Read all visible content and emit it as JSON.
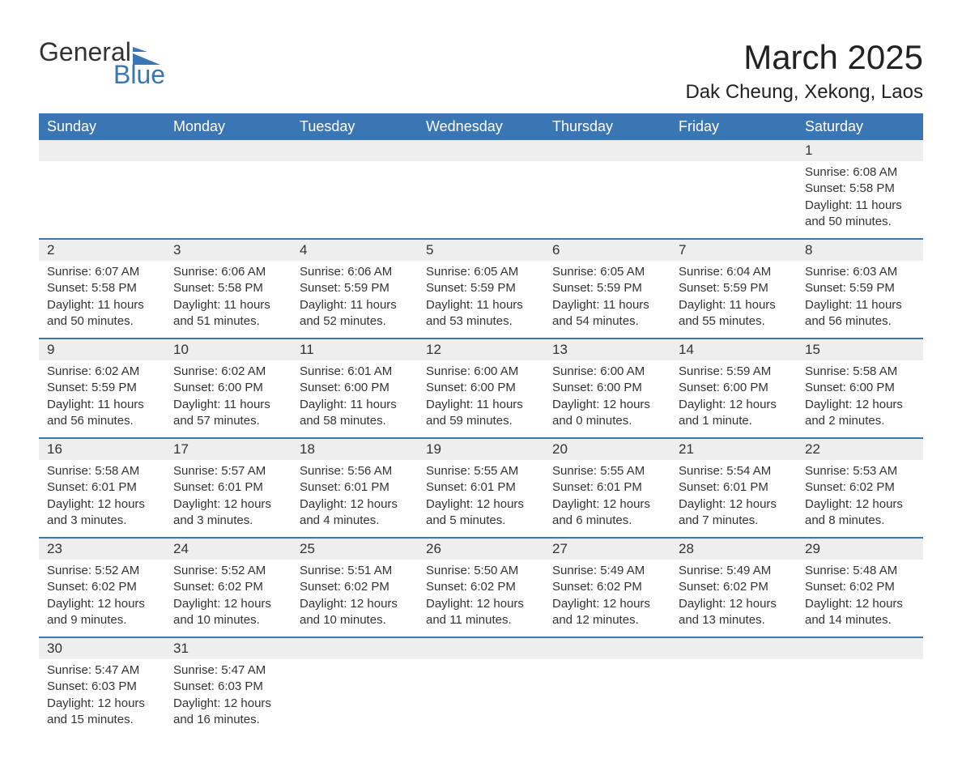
{
  "logo": {
    "word1": "General",
    "word2": "Blue"
  },
  "title": "March 2025",
  "location": "Dak Cheung, Xekong, Laos",
  "colors": {
    "header_bg": "#3a76b4",
    "header_fg": "#ffffff",
    "row_sep": "#3a76b4",
    "daynum_bg": "#eeeeee",
    "text": "#333333",
    "logo_blue": "#3a76b4",
    "page_bg": "#ffffff"
  },
  "weekdays": [
    "Sunday",
    "Monday",
    "Tuesday",
    "Wednesday",
    "Thursday",
    "Friday",
    "Saturday"
  ],
  "weeks": [
    [
      {
        "day": null
      },
      {
        "day": null
      },
      {
        "day": null
      },
      {
        "day": null
      },
      {
        "day": null
      },
      {
        "day": null
      },
      {
        "day": 1,
        "sunrise": "Sunrise: 6:08 AM",
        "sunset": "Sunset: 5:58 PM",
        "daylight": "Daylight: 11 hours and 50 minutes."
      }
    ],
    [
      {
        "day": 2,
        "sunrise": "Sunrise: 6:07 AM",
        "sunset": "Sunset: 5:58 PM",
        "daylight": "Daylight: 11 hours and 50 minutes."
      },
      {
        "day": 3,
        "sunrise": "Sunrise: 6:06 AM",
        "sunset": "Sunset: 5:58 PM",
        "daylight": "Daylight: 11 hours and 51 minutes."
      },
      {
        "day": 4,
        "sunrise": "Sunrise: 6:06 AM",
        "sunset": "Sunset: 5:59 PM",
        "daylight": "Daylight: 11 hours and 52 minutes."
      },
      {
        "day": 5,
        "sunrise": "Sunrise: 6:05 AM",
        "sunset": "Sunset: 5:59 PM",
        "daylight": "Daylight: 11 hours and 53 minutes."
      },
      {
        "day": 6,
        "sunrise": "Sunrise: 6:05 AM",
        "sunset": "Sunset: 5:59 PM",
        "daylight": "Daylight: 11 hours and 54 minutes."
      },
      {
        "day": 7,
        "sunrise": "Sunrise: 6:04 AM",
        "sunset": "Sunset: 5:59 PM",
        "daylight": "Daylight: 11 hours and 55 minutes."
      },
      {
        "day": 8,
        "sunrise": "Sunrise: 6:03 AM",
        "sunset": "Sunset: 5:59 PM",
        "daylight": "Daylight: 11 hours and 56 minutes."
      }
    ],
    [
      {
        "day": 9,
        "sunrise": "Sunrise: 6:02 AM",
        "sunset": "Sunset: 5:59 PM",
        "daylight": "Daylight: 11 hours and 56 minutes."
      },
      {
        "day": 10,
        "sunrise": "Sunrise: 6:02 AM",
        "sunset": "Sunset: 6:00 PM",
        "daylight": "Daylight: 11 hours and 57 minutes."
      },
      {
        "day": 11,
        "sunrise": "Sunrise: 6:01 AM",
        "sunset": "Sunset: 6:00 PM",
        "daylight": "Daylight: 11 hours and 58 minutes."
      },
      {
        "day": 12,
        "sunrise": "Sunrise: 6:00 AM",
        "sunset": "Sunset: 6:00 PM",
        "daylight": "Daylight: 11 hours and 59 minutes."
      },
      {
        "day": 13,
        "sunrise": "Sunrise: 6:00 AM",
        "sunset": "Sunset: 6:00 PM",
        "daylight": "Daylight: 12 hours and 0 minutes."
      },
      {
        "day": 14,
        "sunrise": "Sunrise: 5:59 AM",
        "sunset": "Sunset: 6:00 PM",
        "daylight": "Daylight: 12 hours and 1 minute."
      },
      {
        "day": 15,
        "sunrise": "Sunrise: 5:58 AM",
        "sunset": "Sunset: 6:00 PM",
        "daylight": "Daylight: 12 hours and 2 minutes."
      }
    ],
    [
      {
        "day": 16,
        "sunrise": "Sunrise: 5:58 AM",
        "sunset": "Sunset: 6:01 PM",
        "daylight": "Daylight: 12 hours and 3 minutes."
      },
      {
        "day": 17,
        "sunrise": "Sunrise: 5:57 AM",
        "sunset": "Sunset: 6:01 PM",
        "daylight": "Daylight: 12 hours and 3 minutes."
      },
      {
        "day": 18,
        "sunrise": "Sunrise: 5:56 AM",
        "sunset": "Sunset: 6:01 PM",
        "daylight": "Daylight: 12 hours and 4 minutes."
      },
      {
        "day": 19,
        "sunrise": "Sunrise: 5:55 AM",
        "sunset": "Sunset: 6:01 PM",
        "daylight": "Daylight: 12 hours and 5 minutes."
      },
      {
        "day": 20,
        "sunrise": "Sunrise: 5:55 AM",
        "sunset": "Sunset: 6:01 PM",
        "daylight": "Daylight: 12 hours and 6 minutes."
      },
      {
        "day": 21,
        "sunrise": "Sunrise: 5:54 AM",
        "sunset": "Sunset: 6:01 PM",
        "daylight": "Daylight: 12 hours and 7 minutes."
      },
      {
        "day": 22,
        "sunrise": "Sunrise: 5:53 AM",
        "sunset": "Sunset: 6:02 PM",
        "daylight": "Daylight: 12 hours and 8 minutes."
      }
    ],
    [
      {
        "day": 23,
        "sunrise": "Sunrise: 5:52 AM",
        "sunset": "Sunset: 6:02 PM",
        "daylight": "Daylight: 12 hours and 9 minutes."
      },
      {
        "day": 24,
        "sunrise": "Sunrise: 5:52 AM",
        "sunset": "Sunset: 6:02 PM",
        "daylight": "Daylight: 12 hours and 10 minutes."
      },
      {
        "day": 25,
        "sunrise": "Sunrise: 5:51 AM",
        "sunset": "Sunset: 6:02 PM",
        "daylight": "Daylight: 12 hours and 10 minutes."
      },
      {
        "day": 26,
        "sunrise": "Sunrise: 5:50 AM",
        "sunset": "Sunset: 6:02 PM",
        "daylight": "Daylight: 12 hours and 11 minutes."
      },
      {
        "day": 27,
        "sunrise": "Sunrise: 5:49 AM",
        "sunset": "Sunset: 6:02 PM",
        "daylight": "Daylight: 12 hours and 12 minutes."
      },
      {
        "day": 28,
        "sunrise": "Sunrise: 5:49 AM",
        "sunset": "Sunset: 6:02 PM",
        "daylight": "Daylight: 12 hours and 13 minutes."
      },
      {
        "day": 29,
        "sunrise": "Sunrise: 5:48 AM",
        "sunset": "Sunset: 6:02 PM",
        "daylight": "Daylight: 12 hours and 14 minutes."
      }
    ],
    [
      {
        "day": 30,
        "sunrise": "Sunrise: 5:47 AM",
        "sunset": "Sunset: 6:03 PM",
        "daylight": "Daylight: 12 hours and 15 minutes."
      },
      {
        "day": 31,
        "sunrise": "Sunrise: 5:47 AM",
        "sunset": "Sunset: 6:03 PM",
        "daylight": "Daylight: 12 hours and 16 minutes."
      },
      {
        "day": null
      },
      {
        "day": null
      },
      {
        "day": null
      },
      {
        "day": null
      },
      {
        "day": null
      }
    ]
  ]
}
